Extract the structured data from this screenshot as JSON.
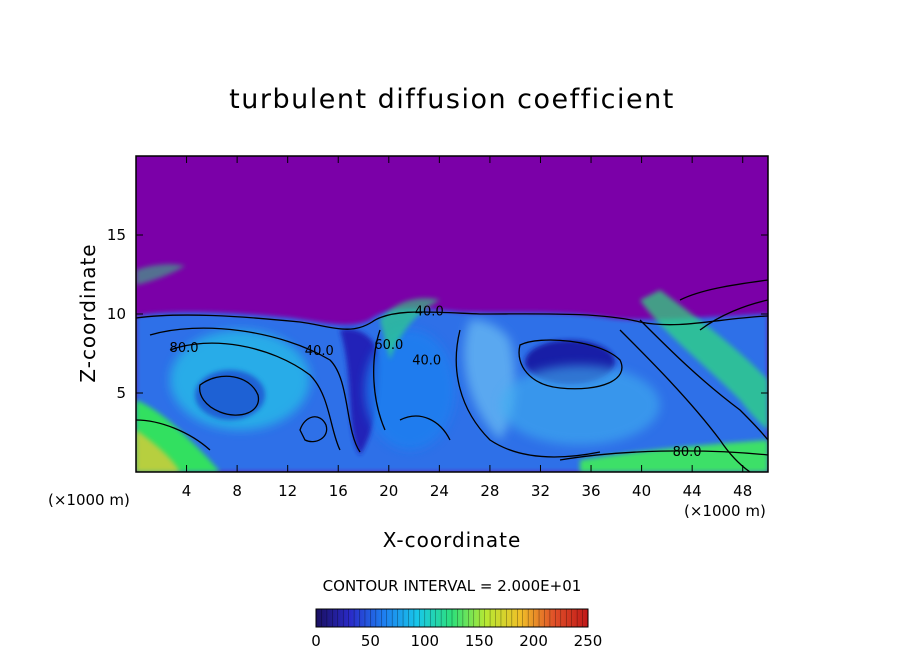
{
  "chart_data": {
    "type": "heatmap",
    "title": "turbulent diffusion coefficient",
    "xlabel": "X-coordinate",
    "ylabel": "Z-coordinate",
    "x_unit": "(×1000 m)",
    "z_unit": "(×1000 m)",
    "xlim": [
      0,
      50
    ],
    "ylim": [
      0,
      20
    ],
    "x_ticks": [
      4,
      8,
      12,
      16,
      20,
      24,
      28,
      32,
      36,
      40,
      44,
      48
    ],
    "y_ticks": [
      5,
      10,
      15
    ],
    "contour_interval_label": "CONTOUR INTERVAL = 2.000E+01",
    "colorbar": {
      "ticks": [
        0,
        50,
        100,
        150,
        200,
        250
      ],
      "range": [
        0,
        250
      ],
      "colors": [
        "#1a1060",
        "#2a2ac8",
        "#1e7ff0",
        "#18c8e8",
        "#2ee07a",
        "#b8e832",
        "#f0c028",
        "#e05028",
        "#c01818"
      ]
    },
    "contour_labels": [
      {
        "text": "80.0",
        "x": 3.8,
        "z": 7.6
      },
      {
        "text": "40.0",
        "x": 14.5,
        "z": 7.4
      },
      {
        "text": "60.0",
        "x": 20.0,
        "z": 7.8
      },
      {
        "text": "40.0",
        "x": 23.2,
        "z": 9.9
      },
      {
        "text": "40.0",
        "x": 23.0,
        "z": 6.8
      },
      {
        "text": "80.0",
        "x": 43.6,
        "z": 1.0
      }
    ],
    "background_color": "#7b00a8"
  }
}
